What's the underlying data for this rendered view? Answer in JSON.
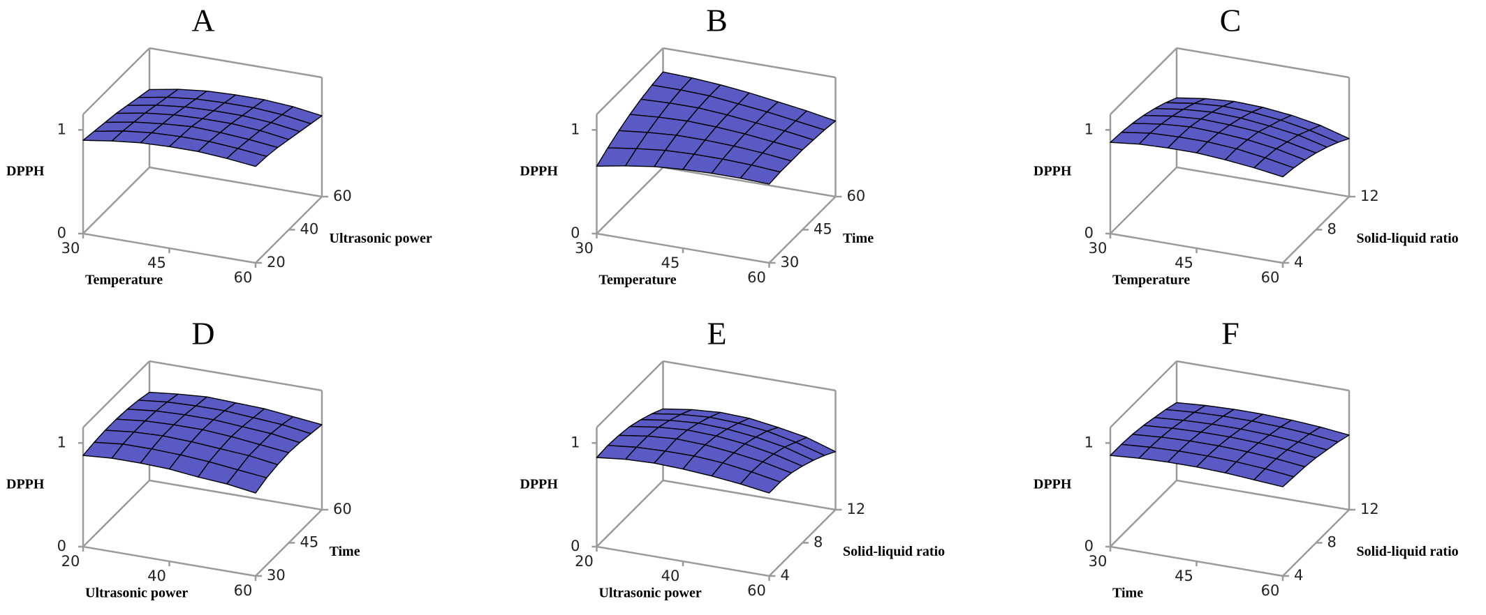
{
  "chart_data": [
    {
      "type": "surface",
      "title": "A",
      "x_label": "Temperature",
      "y_label": "Ultrasonic power",
      "z_label": "DPPH",
      "xlim": [
        30,
        60
      ],
      "ylim": [
        20,
        60
      ],
      "zlim": [
        0,
        1.15
      ],
      "xticks": [
        30,
        45,
        60
      ],
      "yticks": [
        20,
        40,
        60
      ],
      "zticks": [
        0,
        1
      ],
      "color": "#5a5ac4",
      "x": [
        30,
        35,
        40,
        45,
        50,
        55,
        60
      ],
      "y": [
        20,
        26.67,
        33.33,
        40,
        46.67,
        53.33,
        60
      ],
      "z": [
        [
          0.9,
          0.94,
          0.97,
          0.98,
          0.98,
          0.96,
          0.93
        ],
        [
          0.88,
          0.93,
          0.96,
          0.97,
          0.97,
          0.95,
          0.92
        ],
        [
          0.86,
          0.91,
          0.94,
          0.96,
          0.95,
          0.93,
          0.9
        ],
        [
          0.84,
          0.89,
          0.92,
          0.93,
          0.93,
          0.91,
          0.87
        ],
        [
          0.81,
          0.86,
          0.89,
          0.9,
          0.9,
          0.88,
          0.84
        ],
        [
          0.78,
          0.83,
          0.86,
          0.87,
          0.87,
          0.85,
          0.81
        ],
        [
          0.75,
          0.8,
          0.83,
          0.84,
          0.84,
          0.82,
          0.78
        ]
      ]
    },
    {
      "type": "surface",
      "title": "B",
      "x_label": "Temperature",
      "y_label": "Time",
      "z_label": "DPPH",
      "xlim": [
        30,
        60
      ],
      "ylim": [
        30,
        60
      ],
      "zlim": [
        0,
        1.15
      ],
      "xticks": [
        30,
        45,
        60
      ],
      "yticks": [
        30,
        45,
        60
      ],
      "zticks": [
        0,
        1
      ],
      "color": "#5a5ac4",
      "x": [
        30,
        35,
        40,
        45,
        50,
        55,
        60
      ],
      "y": [
        30,
        35,
        40,
        45,
        50,
        55,
        60
      ],
      "z": [
        [
          0.65,
          0.7,
          0.74,
          0.76,
          0.77,
          0.77,
          0.76
        ],
        [
          0.72,
          0.76,
          0.79,
          0.8,
          0.8,
          0.79,
          0.77
        ],
        [
          0.78,
          0.81,
          0.83,
          0.83,
          0.82,
          0.8,
          0.77
        ],
        [
          0.83,
          0.85,
          0.86,
          0.85,
          0.83,
          0.8,
          0.77
        ],
        [
          0.87,
          0.88,
          0.88,
          0.86,
          0.83,
          0.8,
          0.76
        ],
        [
          0.9,
          0.9,
          0.89,
          0.86,
          0.83,
          0.79,
          0.75
        ],
        [
          0.92,
          0.91,
          0.89,
          0.86,
          0.82,
          0.78,
          0.73
        ]
      ]
    },
    {
      "type": "surface",
      "title": "C",
      "x_label": "Temperature",
      "y_label": "Solid-liquid ratio",
      "z_label": "DPPH",
      "xlim": [
        30,
        60
      ],
      "ylim": [
        4,
        12
      ],
      "zlim": [
        0,
        1.15
      ],
      "xticks": [
        30,
        45,
        60
      ],
      "yticks": [
        4,
        8,
        12
      ],
      "zticks": [
        0,
        1
      ],
      "color": "#5a5ac4",
      "x": [
        30,
        35,
        40,
        45,
        50,
        55,
        60
      ],
      "y": [
        4,
        5.33,
        6.67,
        8,
        9.33,
        10.67,
        12
      ],
      "z": [
        [
          0.88,
          0.91,
          0.92,
          0.92,
          0.9,
          0.87,
          0.83
        ],
        [
          0.87,
          0.91,
          0.92,
          0.92,
          0.9,
          0.86,
          0.81
        ],
        [
          0.85,
          0.89,
          0.91,
          0.9,
          0.88,
          0.84,
          0.78
        ],
        [
          0.82,
          0.86,
          0.88,
          0.87,
          0.85,
          0.8,
          0.74
        ],
        [
          0.78,
          0.82,
          0.84,
          0.83,
          0.8,
          0.76,
          0.69
        ],
        [
          0.73,
          0.77,
          0.79,
          0.78,
          0.75,
          0.7,
          0.63
        ],
        [
          0.67,
          0.71,
          0.73,
          0.72,
          0.69,
          0.64,
          0.56
        ]
      ]
    },
    {
      "type": "surface",
      "title": "D",
      "x_label": "Ultrasonic power",
      "y_label": "Time",
      "z_label": "DPPH",
      "xlim": [
        20,
        60
      ],
      "ylim": [
        30,
        60
      ],
      "zlim": [
        0,
        1.15
      ],
      "xticks": [
        20,
        40,
        60
      ],
      "yticks": [
        30,
        45,
        60
      ],
      "zticks": [
        0,
        1
      ],
      "color": "#5a5ac4",
      "x": [
        20,
        26.67,
        33.33,
        40,
        46.67,
        53.33,
        60
      ],
      "y": [
        30,
        35,
        40,
        45,
        50,
        55,
        60
      ],
      "z": [
        [
          0.88,
          0.9,
          0.9,
          0.89,
          0.86,
          0.84,
          0.8
        ],
        [
          0.9,
          0.93,
          0.93,
          0.92,
          0.9,
          0.87,
          0.84
        ],
        [
          0.91,
          0.94,
          0.95,
          0.94,
          0.92,
          0.9,
          0.86
        ],
        [
          0.91,
          0.94,
          0.95,
          0.95,
          0.93,
          0.9,
          0.87
        ],
        [
          0.9,
          0.93,
          0.94,
          0.94,
          0.92,
          0.9,
          0.86
        ],
        [
          0.88,
          0.91,
          0.92,
          0.92,
          0.9,
          0.88,
          0.84
        ],
        [
          0.85,
          0.88,
          0.9,
          0.89,
          0.88,
          0.85,
          0.82
        ]
      ]
    },
    {
      "type": "surface",
      "title": "E",
      "x_label": "Ultrasonic power",
      "y_label": "Solid-liquid ratio",
      "z_label": "DPPH",
      "xlim": [
        20,
        60
      ],
      "ylim": [
        4,
        12
      ],
      "zlim": [
        0,
        1.15
      ],
      "xticks": [
        20,
        40,
        60
      ],
      "yticks": [
        4,
        8,
        12
      ],
      "zticks": [
        0,
        1
      ],
      "color": "#5a5ac4",
      "x": [
        20,
        26.67,
        33.33,
        40,
        46.67,
        53.33,
        60
      ],
      "y": [
        4,
        5.33,
        6.67,
        8,
        9.33,
        10.67,
        12
      ],
      "z": [
        [
          0.86,
          0.89,
          0.9,
          0.89,
          0.87,
          0.84,
          0.8
        ],
        [
          0.87,
          0.9,
          0.91,
          0.91,
          0.89,
          0.85,
          0.8
        ],
        [
          0.86,
          0.9,
          0.92,
          0.91,
          0.88,
          0.84,
          0.78
        ],
        [
          0.84,
          0.88,
          0.9,
          0.89,
          0.86,
          0.81,
          0.74
        ],
        [
          0.8,
          0.84,
          0.86,
          0.85,
          0.82,
          0.77,
          0.69
        ],
        [
          0.75,
          0.79,
          0.81,
          0.8,
          0.77,
          0.71,
          0.63
        ],
        [
          0.69,
          0.73,
          0.75,
          0.74,
          0.7,
          0.65,
          0.56
        ]
      ]
    },
    {
      "type": "surface",
      "title": "F",
      "x_label": "Time",
      "y_label": "Solid-liquid ratio",
      "z_label": "DPPH",
      "xlim": [
        30,
        60
      ],
      "ylim": [
        4,
        12
      ],
      "zlim": [
        0,
        1.15
      ],
      "xticks": [
        30,
        45,
        60
      ],
      "yticks": [
        4,
        8,
        12
      ],
      "zticks": [
        0,
        1
      ],
      "color": "#5a5ac4",
      "x": [
        30,
        35,
        40,
        45,
        50,
        55,
        60
      ],
      "y": [
        4,
        5.33,
        6.67,
        8,
        9.33,
        10.67,
        12
      ],
      "z": [
        [
          0.88,
          0.9,
          0.91,
          0.91,
          0.9,
          0.88,
          0.86
        ],
        [
          0.88,
          0.9,
          0.91,
          0.91,
          0.9,
          0.88,
          0.85
        ],
        [
          0.87,
          0.89,
          0.9,
          0.9,
          0.89,
          0.87,
          0.84
        ],
        [
          0.85,
          0.87,
          0.88,
          0.88,
          0.87,
          0.85,
          0.82
        ],
        [
          0.82,
          0.84,
          0.85,
          0.85,
          0.84,
          0.82,
          0.79
        ],
        [
          0.79,
          0.81,
          0.82,
          0.82,
          0.81,
          0.79,
          0.76
        ],
        [
          0.75,
          0.77,
          0.78,
          0.78,
          0.77,
          0.75,
          0.72
        ]
      ]
    }
  ]
}
